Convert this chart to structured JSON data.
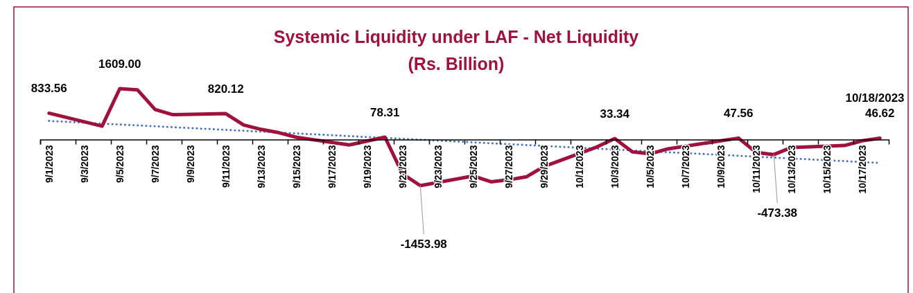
{
  "chart_data": {
    "type": "line",
    "title": "Systemic Liquidity under LAF - Net Liquidity",
    "subtitle": "(Rs. Billion)",
    "xlim": [
      "2023-08-31T12:00",
      "2023-10-18T12:00"
    ],
    "xticks": [
      {
        "value": "2023-09-01",
        "label": "9/1/2023"
      },
      {
        "value": "2023-09-03",
        "label": "9/3/2023"
      },
      {
        "value": "2023-09-05",
        "label": "9/5/2023"
      },
      {
        "value": "2023-09-07",
        "label": "9/7/2023"
      },
      {
        "value": "2023-09-09",
        "label": "9/9/2023"
      },
      {
        "value": "2023-09-11",
        "label": "9/11/2023"
      },
      {
        "value": "2023-09-13",
        "label": "9/13/2023"
      },
      {
        "value": "2023-09-15",
        "label": "9/15/2023"
      },
      {
        "value": "2023-09-17",
        "label": "9/17/2023"
      },
      {
        "value": "2023-09-19",
        "label": "9/19/2023"
      },
      {
        "value": "2023-09-21",
        "label": "9/21/2023"
      },
      {
        "value": "2023-09-23",
        "label": "9/23/2023"
      },
      {
        "value": "2023-09-25",
        "label": "9/25/2023"
      },
      {
        "value": "2023-09-27",
        "label": "9/27/2023"
      },
      {
        "value": "2023-09-29",
        "label": "9/29/2023"
      },
      {
        "value": "2023-10-01",
        "label": "10/1/2023"
      },
      {
        "value": "2023-10-03",
        "label": "10/3/2023"
      },
      {
        "value": "2023-10-05",
        "label": "10/5/2023"
      },
      {
        "value": "2023-10-07",
        "label": "10/7/2023"
      },
      {
        "value": "2023-10-09",
        "label": "10/9/2023"
      },
      {
        "value": "2023-10-11",
        "label": "10/11/2023"
      },
      {
        "value": "2023-10-13",
        "label": "10/13/2023"
      },
      {
        "value": "2023-10-15",
        "label": "10/15/2023"
      },
      {
        "value": "2023-10-17",
        "label": "10/17/2023"
      }
    ],
    "tick_labels": "x",
    "grid": false,
    "marker": "none",
    "series": [
      {
        "color": "#a0113c",
        "line_style": "solid",
        "x": [
          "2023-09-01",
          "2023-09-04",
          "2023-09-05",
          "2023-09-06",
          "2023-09-07",
          "2023-09-08",
          "2023-09-11",
          "2023-09-12",
          "2023-09-13",
          "2023-09-14",
          "2023-09-15",
          "2023-09-18",
          "2023-09-20",
          "2023-09-21",
          "2023-09-22",
          "2023-09-25",
          "2023-09-26",
          "2023-09-27",
          "2023-09-28",
          "2023-09-29",
          "2023-10-02",
          "2023-10-03",
          "2023-10-04",
          "2023-10-05",
          "2023-10-06",
          "2023-10-10",
          "2023-10-11",
          "2023-10-12",
          "2023-10-13",
          "2023-10-16",
          "2023-10-17",
          "2023-10-18"
        ],
        "values": [
          833.56,
          424,
          1609.0,
          1572,
          950,
          786,
          820.12,
          462,
          322,
          218,
          73,
          -167,
          78.31,
          -1083,
          -1453.98,
          -1148,
          -1332,
          -1270,
          -1177,
          -848,
          -230,
          33.34,
          -389,
          -449,
          -293,
          47.56,
          -404,
          -473.38,
          -249,
          -186,
          -38,
          46.62
        ],
        "value_labels": [
          "833.56",
          null,
          "1609.00",
          null,
          null,
          null,
          "820.12",
          null,
          null,
          null,
          null,
          null,
          "78.31",
          null,
          "-1453.98",
          null,
          null,
          null,
          null,
          null,
          null,
          "33.34",
          null,
          null,
          null,
          "47.56",
          null,
          "-473.38",
          null,
          null,
          null,
          "46.62"
        ]
      },
      {
        "type": "line",
        "color": "#4472c4",
        "line_style": "dotted",
        "x": [
          "2023-09-01",
          "2023-10-18"
        ],
        "values": [
          590,
          -737
        ]
      }
    ],
    "annotations": [
      {
        "text": "10/18/2023",
        "x": "2023-10-18",
        "y": 46.62
      }
    ]
  }
}
